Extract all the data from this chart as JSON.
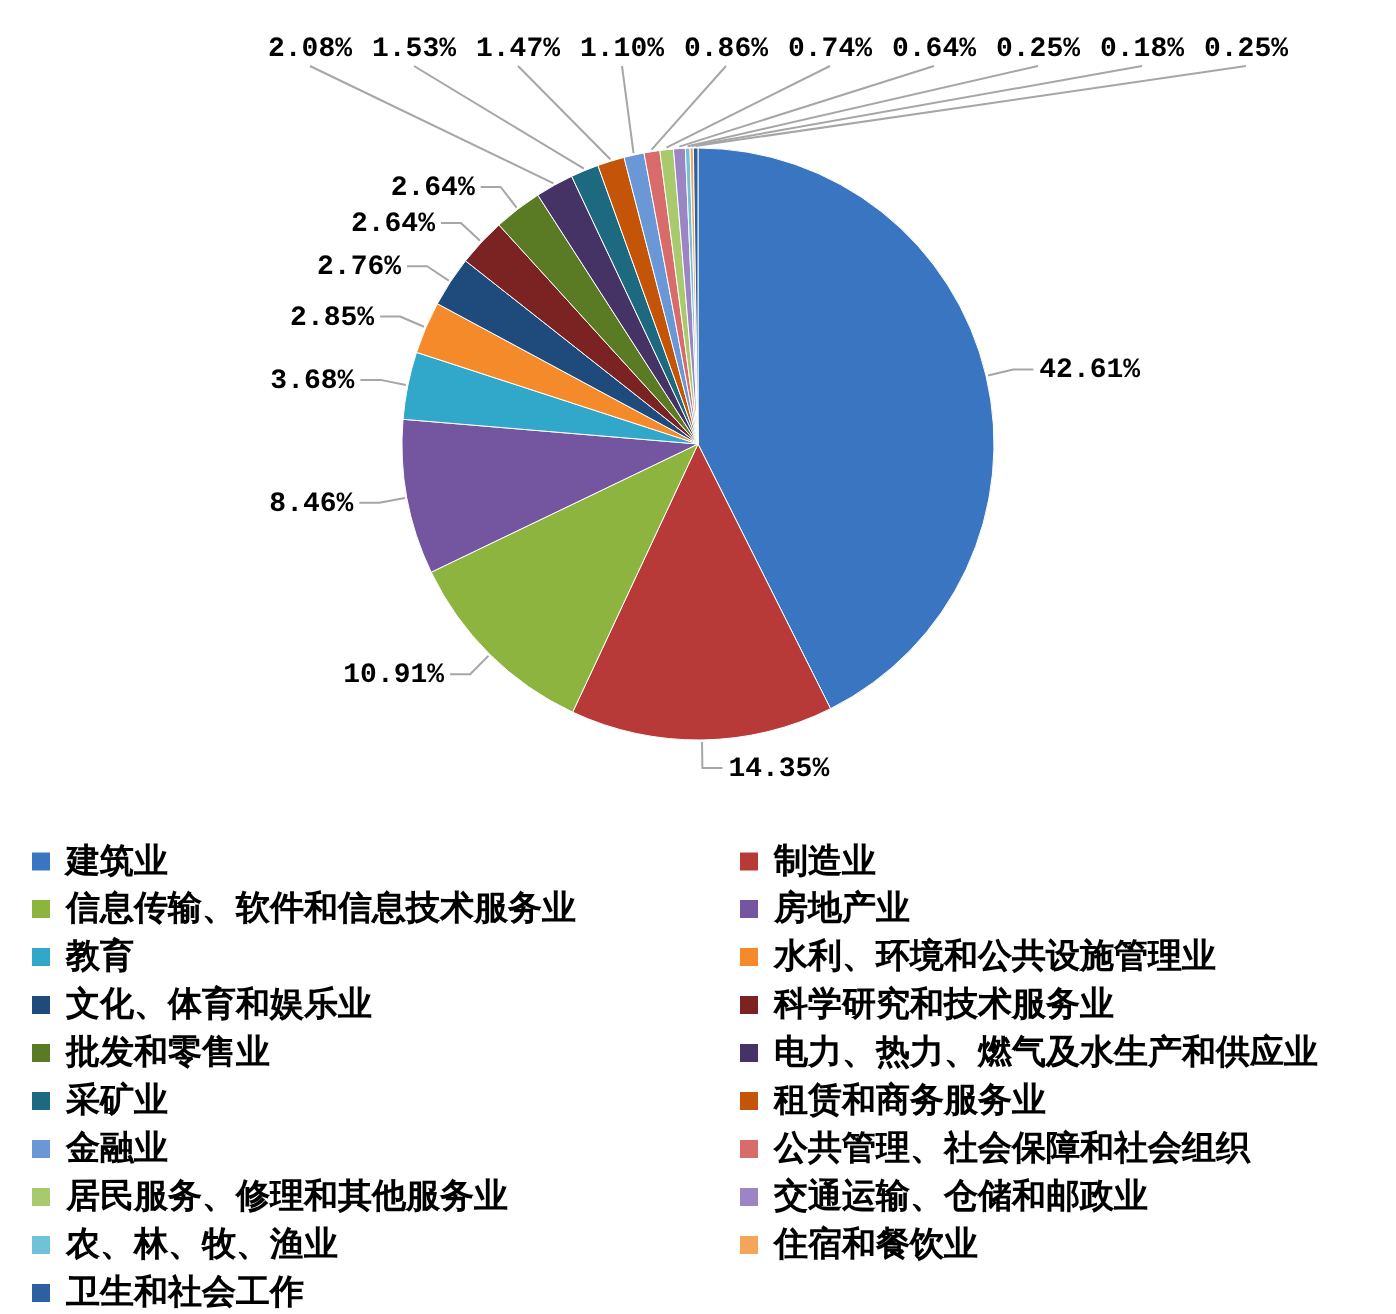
{
  "chart_data": {
    "type": "pie",
    "categories": [
      "建筑业",
      "制造业",
      "信息传输、软件和信息技术服务业",
      "房地产业",
      "教育",
      "水利、环境和公共设施管理业",
      "文化、体育和娱乐业",
      "科学研究和技术服务业",
      "批发和零售业",
      "电力、热力、燃气及水生产和供应业",
      "采矿业",
      "租赁和商务服务业",
      "金融业",
      "公共管理、社会保障和社会组织",
      "居民服务、修理和其他服务业",
      "交通运输、仓储和邮政业",
      "农、林、牧、渔业",
      "住宿和餐饮业",
      "卫生和社会工作"
    ],
    "values": [
      42.61,
      14.35,
      10.91,
      8.46,
      3.68,
      2.85,
      2.76,
      2.64,
      2.64,
      2.08,
      1.53,
      1.47,
      1.1,
      0.86,
      0.74,
      0.64,
      0.25,
      0.18,
      0.25
    ],
    "value_labels": [
      "42.61%",
      "14.35%",
      "10.91%",
      "8.46%",
      "3.68%",
      "2.85%",
      "2.76%",
      "2.64%",
      "2.64%",
      "2.08%",
      "1.53%",
      "1.47%",
      "1.10%",
      "0.86%",
      "0.74%",
      "0.64%",
      "0.25%",
      "0.18%",
      "0.25%"
    ],
    "colors": [
      "#3a75c2",
      "#b83a38",
      "#8db43f",
      "#7355a0",
      "#31a8c9",
      "#f58a2a",
      "#1f4a7c",
      "#7b2323",
      "#5a7a23",
      "#463365",
      "#1d6a80",
      "#c45508",
      "#6a98d6",
      "#d86c6a",
      "#a8ca6c",
      "#9c85c4",
      "#6fc2da",
      "#f5a55a",
      "#2e5fa0"
    ],
    "legend": "bottom"
  }
}
